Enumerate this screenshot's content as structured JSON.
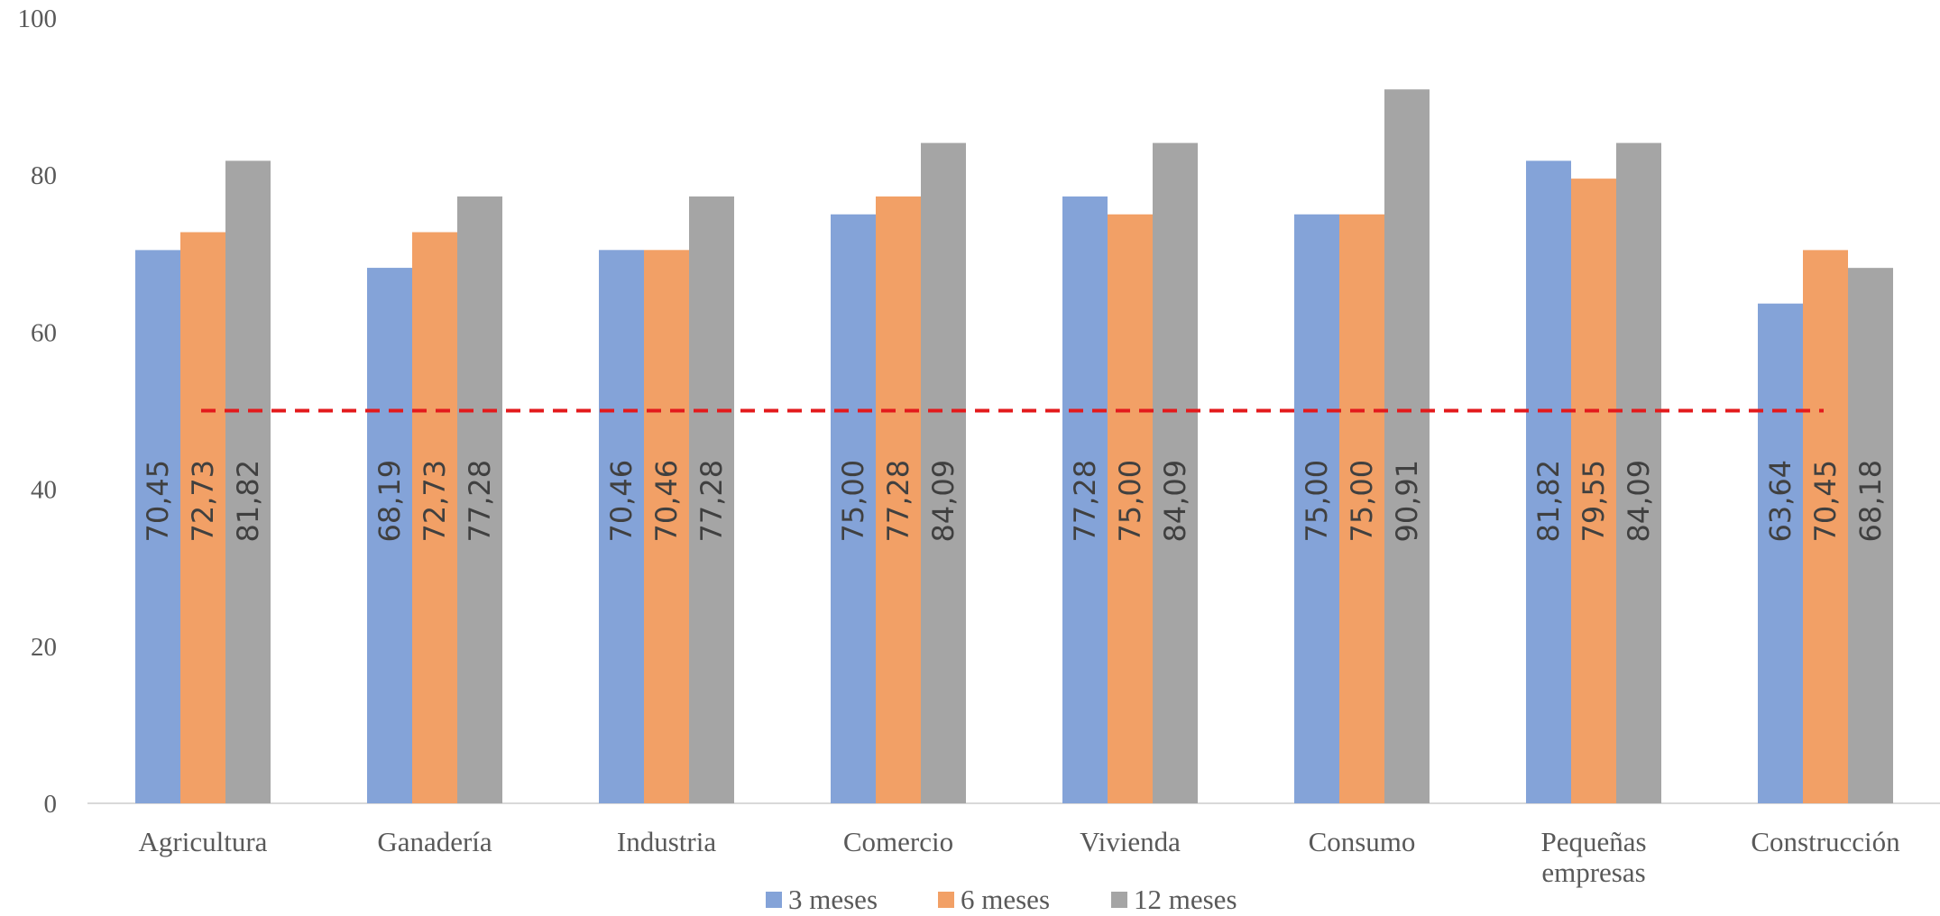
{
  "chart_data": {
    "type": "bar",
    "categories": [
      [
        "Agricultura"
      ],
      [
        "Ganadería"
      ],
      [
        "Industria"
      ],
      [
        "Comercio"
      ],
      [
        "Vivienda"
      ],
      [
        "Consumo"
      ],
      [
        "Pequeñas",
        "empresas"
      ],
      [
        "Construcción"
      ]
    ],
    "series": [
      {
        "name": "3 meses",
        "color": "#84A3D8",
        "values": [
          70.45,
          68.19,
          70.46,
          75.0,
          77.28,
          75.0,
          81.82,
          63.64
        ],
        "labels": [
          "70,45",
          "68,19",
          "70,46",
          "75,00",
          "77,28",
          "75,00",
          "81,82",
          "63,64"
        ]
      },
      {
        "name": "6 meses",
        "color": "#F2A066",
        "values": [
          72.73,
          72.73,
          70.46,
          77.28,
          75.0,
          75.0,
          79.55,
          70.45
        ],
        "labels": [
          "72,73",
          "72,73",
          "70,46",
          "77,28",
          "75,00",
          "75,00",
          "79,55",
          "70,45"
        ]
      },
      {
        "name": "12 meses",
        "color": "#A5A5A5",
        "values": [
          81.82,
          77.28,
          77.28,
          84.09,
          84.09,
          90.91,
          84.09,
          68.18
        ],
        "labels": [
          "81,82",
          "77,28",
          "77,28",
          "84,09",
          "84,09",
          "90,91",
          "84,09",
          "68,18"
        ]
      }
    ],
    "yticks": [
      "0",
      "20",
      "40",
      "60",
      "80",
      "100"
    ],
    "ylim": [
      0,
      100
    ],
    "reference_line": {
      "value": 50,
      "color": "#E31A1C",
      "style": "dashed"
    },
    "axis_color": "#D9D9D9",
    "grid": false,
    "legend_position": "bottom",
    "title": "",
    "xlabel": "",
    "ylabel": ""
  }
}
